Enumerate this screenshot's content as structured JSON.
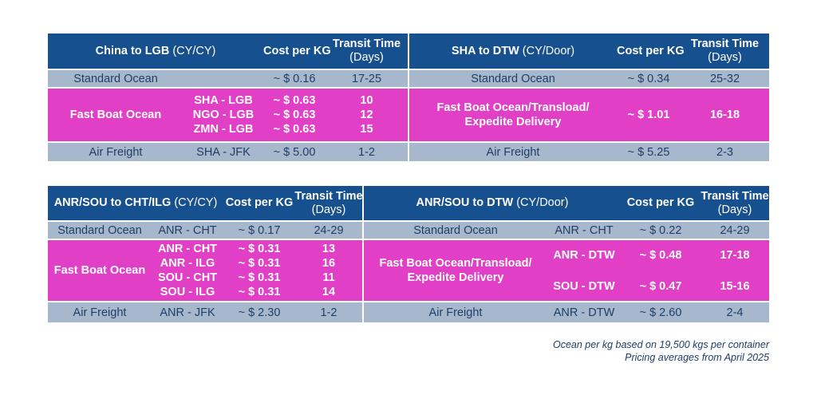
{
  "table1": {
    "left": {
      "title": "China to LGB",
      "title_suffix": "(CY/CY)",
      "cost_header": "Cost per KG",
      "transit_header": "Transit Time",
      "transit_sub": "(Days)",
      "standard": {
        "service": "Standard Ocean",
        "cost": "~ $ 0.16",
        "days": "17-25"
      },
      "fast": {
        "service": "Fast Boat Ocean",
        "routes": [
          "SHA - LGB",
          "NGO - LGB",
          "ZMN - LGB"
        ],
        "costs": [
          "~ $ 0.63",
          "~ $ 0.63",
          "~ $ 0.63"
        ],
        "days": [
          "10",
          "12",
          "15"
        ]
      },
      "air": {
        "service": "Air Freight",
        "route": "SHA - JFK",
        "cost": "~ $ 5.00",
        "days": "1-2"
      }
    },
    "right": {
      "title": "SHA to DTW",
      "title_suffix": "(CY/Door)",
      "cost_header": "Cost per KG",
      "transit_header": "Transit Time",
      "transit_sub": "(Days)",
      "standard": {
        "service": "Standard Ocean",
        "cost": "~ $ 0.34",
        "days": "25-32"
      },
      "fast": {
        "service_line1": "Fast Boat Ocean/Transload/",
        "service_line2": "Expedite Delivery",
        "cost": "~ $ 1.01",
        "days": "16-18"
      },
      "air": {
        "service": "Air Freight",
        "cost": "~ $ 5.25",
        "days": "2-3"
      }
    }
  },
  "table2": {
    "left": {
      "title": "ANR/SOU to CHT/ILG",
      "title_suffix": "(CY/CY)",
      "cost_header": "Cost per KG",
      "transit_header": "Transit Time",
      "transit_sub": "(Days)",
      "standard": {
        "service": "Standard Ocean",
        "route": "ANR - CHT",
        "cost": "~ $ 0.17",
        "days": "24-29"
      },
      "fast": {
        "service": "Fast Boat Ocean",
        "routes": [
          "ANR - CHT",
          "ANR - ILG",
          "SOU - CHT",
          "SOU - ILG"
        ],
        "costs": [
          "~ $ 0.31",
          "~ $ 0.31",
          "~ $ 0.31",
          "~ $ 0.31"
        ],
        "days": [
          "13",
          "16",
          "11",
          "14"
        ]
      },
      "air": {
        "service": "Air Freight",
        "route": "ANR - JFK",
        "cost": "~ $ 2.30",
        "days": "1-2"
      }
    },
    "right": {
      "title": "ANR/SOU to DTW",
      "title_suffix": "(CY/Door)",
      "cost_header": "Cost per KG",
      "transit_header": "Transit Time",
      "transit_sub": "(Days)",
      "standard": {
        "service": "Standard Ocean",
        "route": "ANR - CHT",
        "cost": "~ $ 0.22",
        "days": "24-29"
      },
      "fast": {
        "service_line1": "Fast Boat Ocean/Transload/",
        "service_line2": "Expedite Delivery",
        "routes": [
          "ANR - DTW",
          "SOU - DTW"
        ],
        "costs": [
          "~ $ 0.48",
          "~ $ 0.47"
        ],
        "days": [
          "17-18",
          "15-16"
        ]
      },
      "air": {
        "service": "Air Freight",
        "route": "ANR - DTW",
        "cost": "~ $ 2.60",
        "days": "2-4"
      }
    }
  },
  "notes": {
    "line1": "Ocean per kg based on 19,500 kgs per container",
    "line2": "Pricing averages from April 2025"
  },
  "colors": {
    "header": "#17508e",
    "standard_row": "#a8b8cc",
    "fast_row": "#e23fc7",
    "text": "#1e3e68"
  }
}
